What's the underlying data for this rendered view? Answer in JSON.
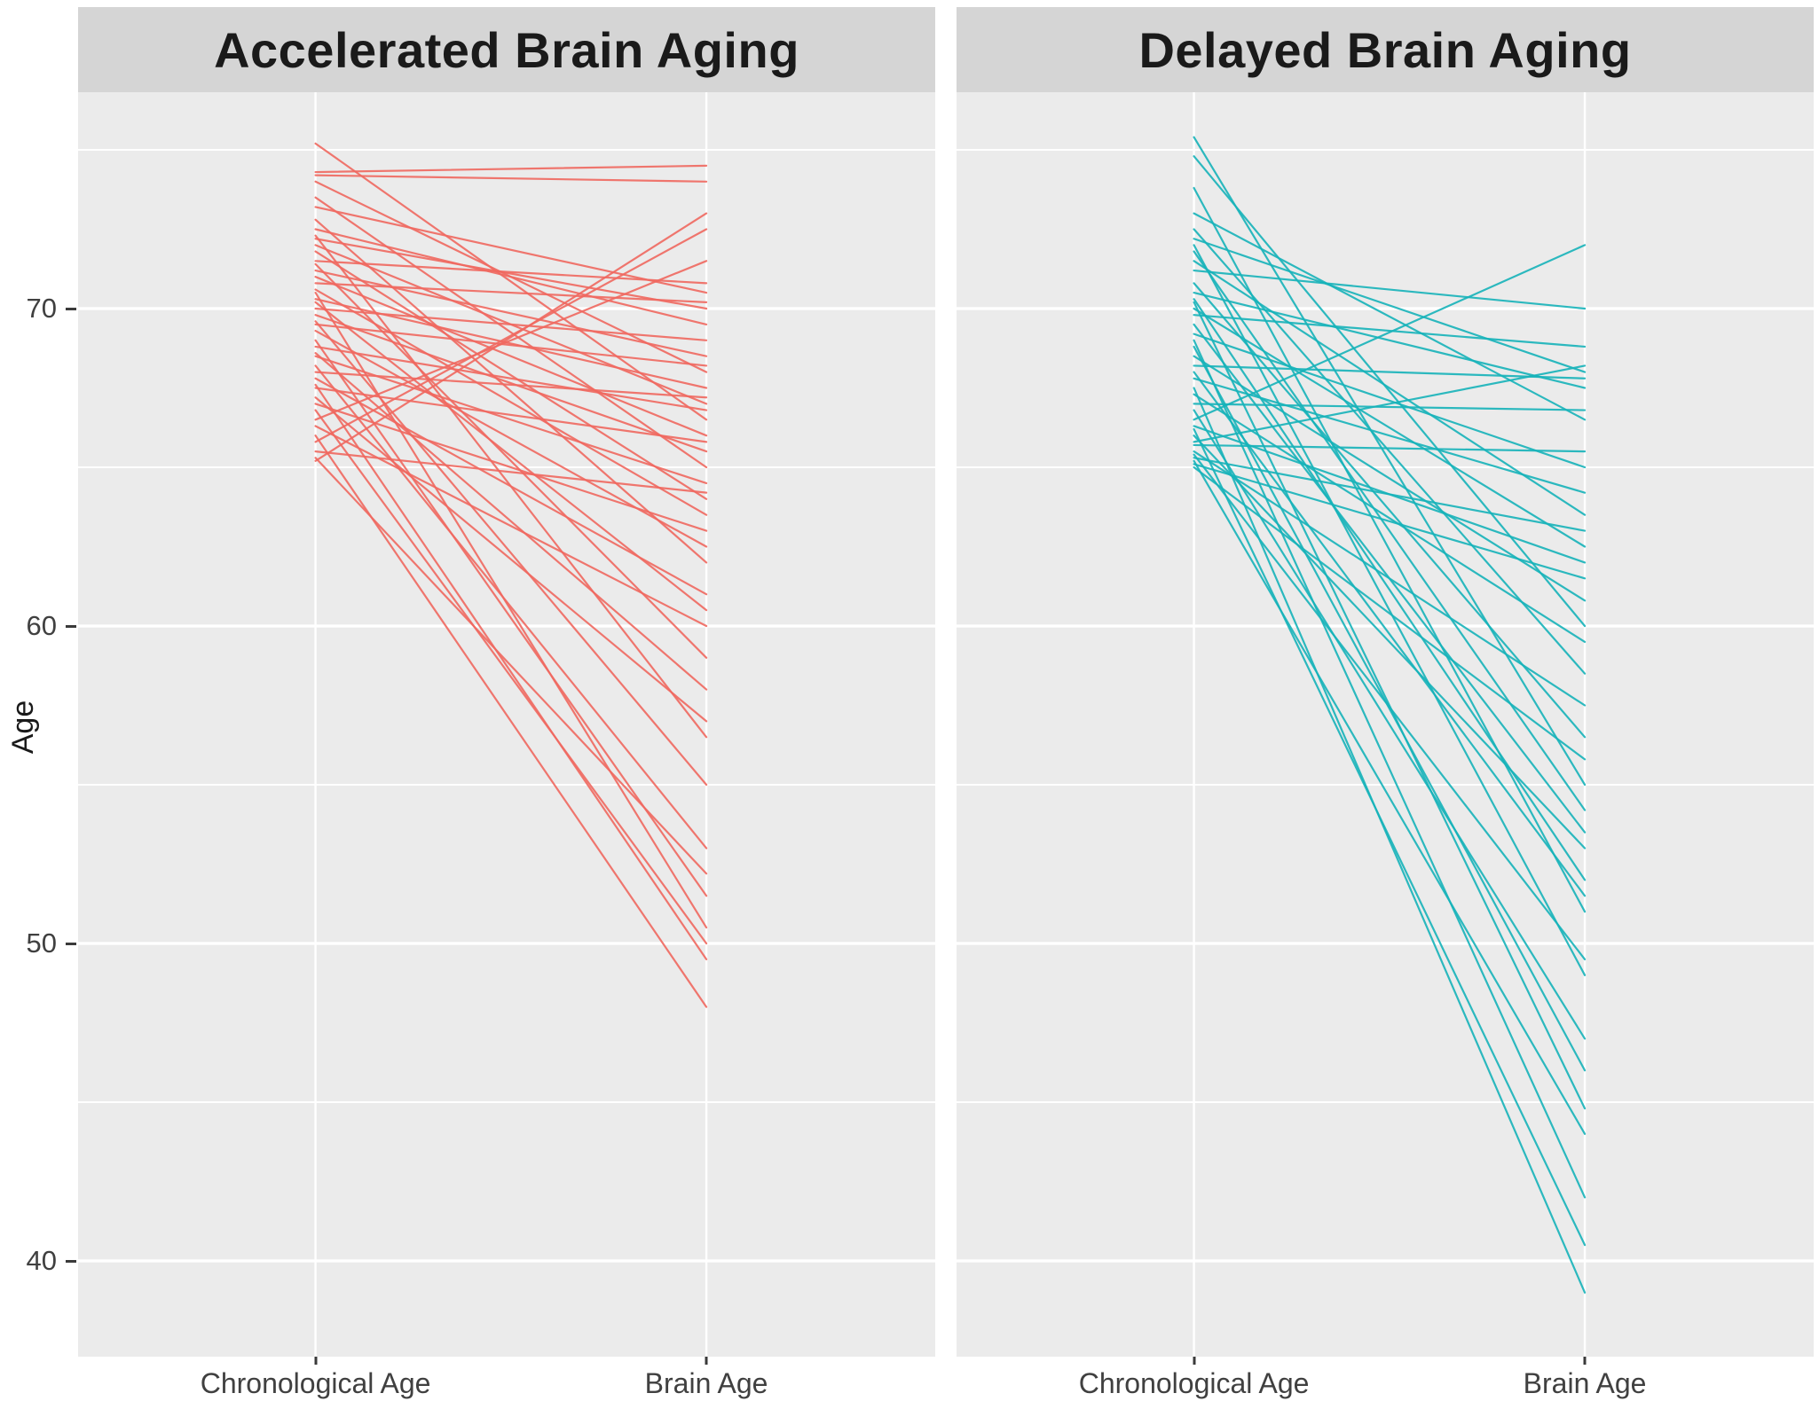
{
  "chart_data": {
    "type": "line",
    "subtype": "faceted-slope-chart",
    "categories": [
      "Chronological Age",
      "Brain Age"
    ],
    "ylabel": "Age",
    "y_ticks": [
      40,
      50,
      60,
      70
    ],
    "y_minor_ticks": [
      45,
      55,
      65,
      75
    ],
    "ylim": [
      37.0,
      76.8
    ],
    "grid": "white major and minor gridlines on gray panel",
    "legend": "none",
    "colors": {
      "panel_bg": "#EBEBEB",
      "strip_bg": "#D5D5D5",
      "gridline": "#FFFFFF",
      "tick_text": "#404040",
      "strip_text": "#1A1A1A",
      "accelerated_line": "#F0685F",
      "delayed_line": "#16B2B9"
    },
    "panels": [
      {
        "title": "Accelerated Brain Aging",
        "color": "#F0685F",
        "lines_note": "each line = one subject, [chronological_age, brain_age] in years",
        "lines": [
          [
            75.2,
            66.5
          ],
          [
            74.3,
            74.5
          ],
          [
            74.2,
            74.0
          ],
          [
            74.0,
            68.0
          ],
          [
            73.5,
            65.0
          ],
          [
            73.2,
            70.5
          ],
          [
            72.8,
            62.0
          ],
          [
            72.5,
            69.5
          ],
          [
            72.3,
            56.5
          ],
          [
            72.2,
            70.0
          ],
          [
            72.0,
            67.0
          ],
          [
            71.8,
            64.0
          ],
          [
            71.5,
            70.8
          ],
          [
            71.4,
            59.0
          ],
          [
            71.2,
            68.5
          ],
          [
            71.0,
            66.0
          ],
          [
            70.8,
            70.2
          ],
          [
            70.6,
            63.5
          ],
          [
            70.5,
            50.5
          ],
          [
            70.3,
            67.5
          ],
          [
            70.2,
            60.5
          ],
          [
            70.0,
            69.0
          ],
          [
            69.8,
            65.5
          ],
          [
            69.6,
            55.0
          ],
          [
            69.5,
            68.2
          ],
          [
            69.3,
            62.5
          ],
          [
            69.0,
            51.5
          ],
          [
            68.8,
            66.8
          ],
          [
            68.6,
            58.0
          ],
          [
            68.5,
            64.5
          ],
          [
            68.2,
            53.0
          ],
          [
            68.0,
            67.2
          ],
          [
            67.8,
            61.0
          ],
          [
            67.6,
            49.5
          ],
          [
            67.5,
            65.8
          ],
          [
            67.2,
            57.0
          ],
          [
            67.0,
            63.0
          ],
          [
            66.8,
            50.0
          ],
          [
            66.5,
            71.5
          ],
          [
            66.3,
            60.0
          ],
          [
            66.0,
            48.0
          ],
          [
            65.8,
            72.5
          ],
          [
            65.5,
            64.2
          ],
          [
            65.3,
            52.2
          ],
          [
            65.2,
            73.0
          ]
        ]
      },
      {
        "title": "Delayed Brain Aging",
        "color": "#16B2B9",
        "lines_note": "each line = one subject, [chronological_age, brain_age] in years",
        "lines": [
          [
            75.4,
            55.0
          ],
          [
            74.8,
            60.0
          ],
          [
            73.8,
            51.0
          ],
          [
            73.0,
            66.5
          ],
          [
            72.5,
            58.5
          ],
          [
            72.2,
            68.0
          ],
          [
            72.0,
            49.0
          ],
          [
            71.8,
            54.2
          ],
          [
            71.5,
            63.5
          ],
          [
            71.2,
            70.0
          ],
          [
            70.8,
            56.5
          ],
          [
            70.5,
            67.5
          ],
          [
            70.3,
            52.0
          ],
          [
            70.2,
            44.8
          ],
          [
            70.0,
            62.5
          ],
          [
            69.8,
            68.8
          ],
          [
            69.5,
            53.5
          ],
          [
            69.2,
            65.0
          ],
          [
            69.0,
            42.0
          ],
          [
            68.8,
            46.0
          ],
          [
            68.5,
            60.8
          ],
          [
            68.2,
            67.8
          ],
          [
            68.0,
            51.5
          ],
          [
            67.8,
            64.2
          ],
          [
            67.5,
            39.0
          ],
          [
            67.3,
            59.5
          ],
          [
            67.0,
            66.8
          ],
          [
            66.8,
            47.0
          ],
          [
            66.5,
            72.0
          ],
          [
            66.3,
            62.0
          ],
          [
            66.2,
            40.5
          ],
          [
            66.0,
            53.0
          ],
          [
            65.8,
            68.2
          ],
          [
            65.7,
            65.5
          ],
          [
            65.5,
            57.5
          ],
          [
            65.4,
            49.5
          ],
          [
            65.3,
            63.0
          ],
          [
            65.2,
            44.0
          ],
          [
            65.1,
            61.5
          ],
          [
            65.0,
            55.8
          ]
        ]
      }
    ]
  }
}
